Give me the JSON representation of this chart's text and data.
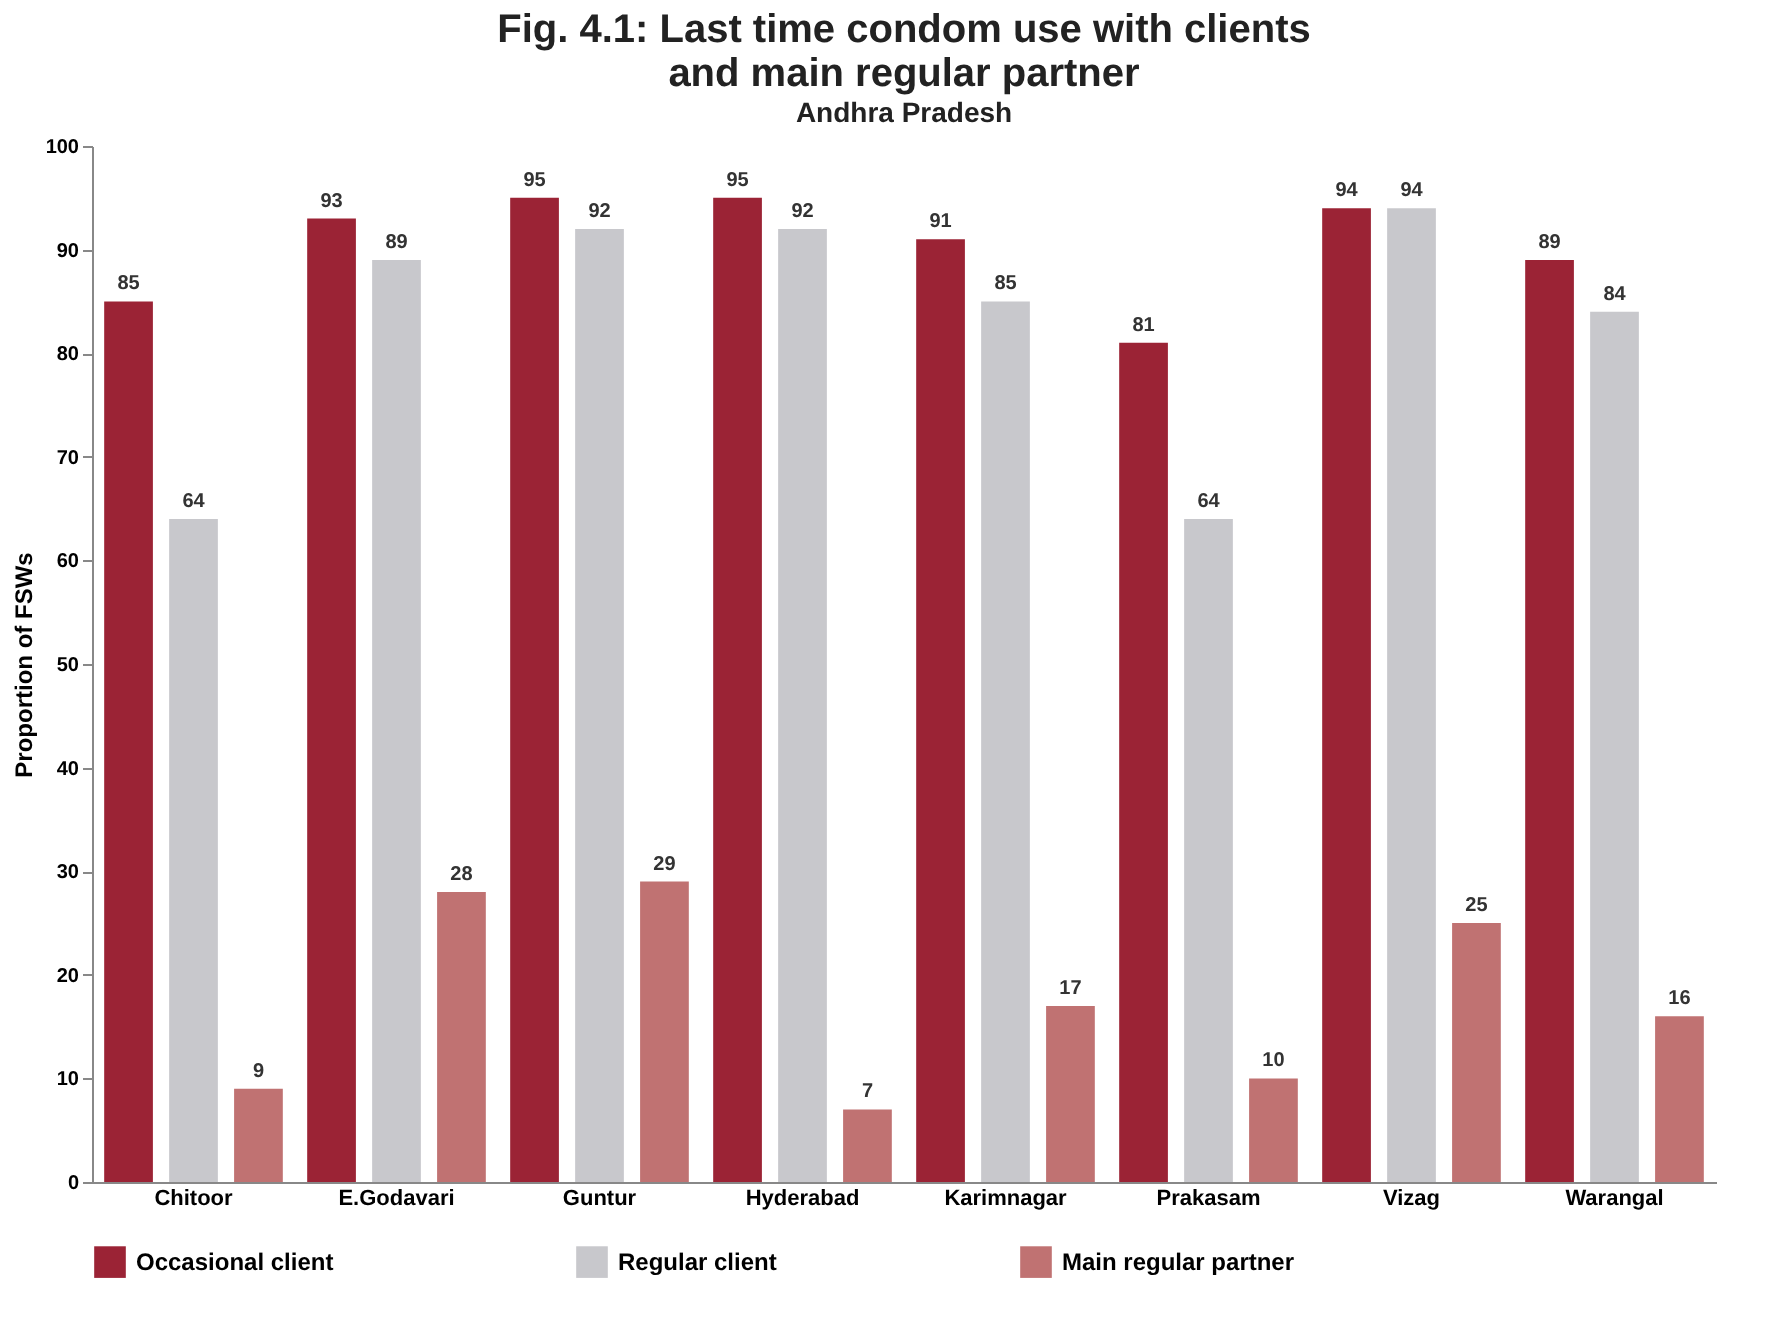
{
  "chart_data": {
    "type": "bar",
    "title": [
      "Fig. 4.1: Last time condom use with clients",
      "and main regular partner"
    ],
    "subtitle": "Andhra Pradesh",
    "ylabel": "Proportion of FSWs",
    "categories": [
      "Chitoor",
      "E.Godavari",
      "Guntur",
      "Hyderabad",
      "Karimnagar",
      "Prakasam",
      "Vizag",
      "Warangal"
    ],
    "series": [
      {
        "name": "Occasional client",
        "color": "#9b2335",
        "values": [
          85,
          93,
          95,
          95,
          91,
          81,
          94,
          89
        ]
      },
      {
        "name": "Regular client",
        "color": "#c8c8cc",
        "values": [
          64,
          89,
          92,
          92,
          85,
          64,
          94,
          84
        ]
      },
      {
        "name": "Main regular partner",
        "color": "#c07272",
        "values": [
          9,
          28,
          29,
          7,
          17,
          10,
          25,
          16
        ]
      }
    ],
    "ylim": [
      0,
      100
    ],
    "yticks": [
      0,
      10,
      20,
      30,
      40,
      50,
      60,
      70,
      80,
      90,
      100
    ],
    "data_labels": true,
    "legend": "bottom",
    "grid": false
  }
}
